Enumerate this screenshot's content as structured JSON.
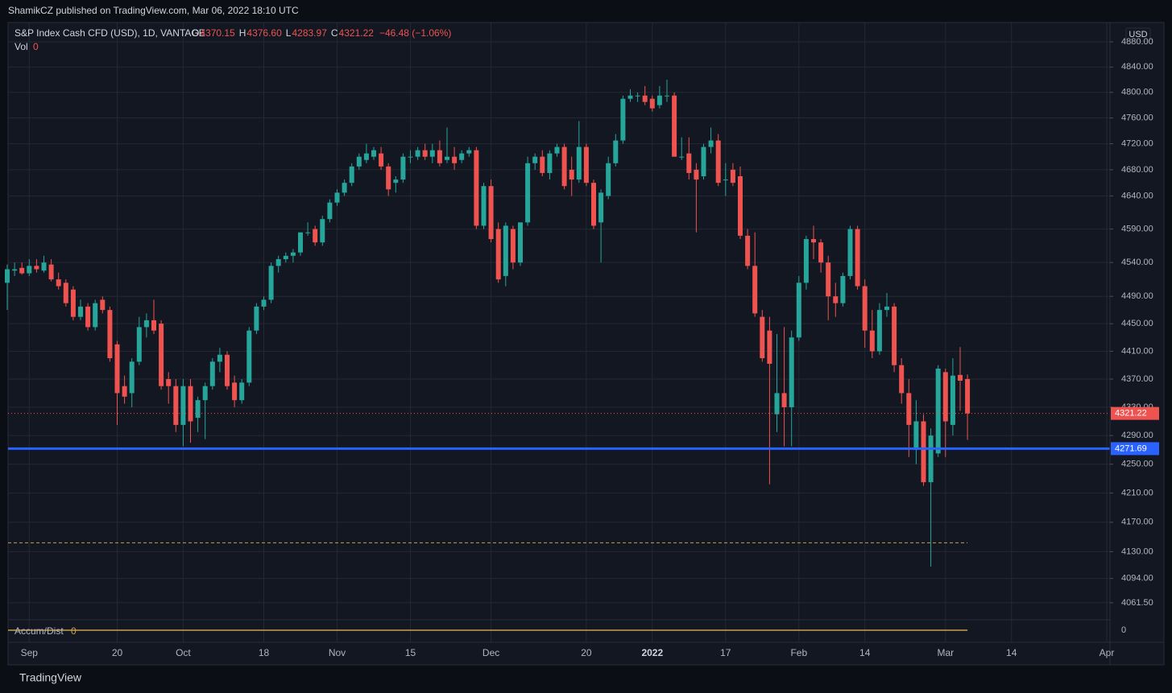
{
  "header": {
    "publisher": "ShamikCZ published on TradingView.com, Mar 06, 2022 18:10 UTC"
  },
  "legend": {
    "symbol": "S&P Index Cash CFD (USD), 1D, VANTAGE",
    "ohlc": [
      {
        "key": "O",
        "text": "4370.15"
      },
      {
        "key": "H",
        "text": "4376.60"
      },
      {
        "key": "L",
        "text": "4283.97"
      },
      {
        "key": "C",
        "text": "4321.22"
      }
    ],
    "change": "−46.48 (−1.06%)"
  },
  "indicators": {
    "volume": {
      "name": "Vol",
      "value": 0
    },
    "accum_dist": {
      "name": "Accum/Dist",
      "value": 0,
      "color": "#c8a04a"
    }
  },
  "footer": {
    "brand": "TradingView"
  },
  "chart_data": {
    "type": "candlestick",
    "currency": "USD",
    "log_scale": true,
    "grid": true,
    "up_color": "#26a69a",
    "down_color": "#ef5350",
    "ylim": [
      4039,
      4911
    ],
    "yticks": [
      {
        "value": 4880,
        "label": "4880.00"
      },
      {
        "value": 4840,
        "label": "4840.00"
      },
      {
        "value": 4800,
        "label": "4800.00"
      },
      {
        "value": 4760,
        "label": "4760.00"
      },
      {
        "value": 4720,
        "label": "4720.00"
      },
      {
        "value": 4680,
        "label": "4680.00"
      },
      {
        "value": 4640,
        "label": "4640.00"
      },
      {
        "value": 4590,
        "label": "4590.00"
      },
      {
        "value": 4540,
        "label": "4540.00"
      },
      {
        "value": 4490,
        "label": "4490.00"
      },
      {
        "value": 4450,
        "label": "4450.00"
      },
      {
        "value": 4410,
        "label": "4410.00"
      },
      {
        "value": 4370,
        "label": "4370.00"
      },
      {
        "value": 4330,
        "label": "4330.00"
      },
      {
        "value": 4290,
        "label": "4290.00"
      },
      {
        "value": 4250,
        "label": "4250.00"
      },
      {
        "value": 4210,
        "label": "4210.00"
      },
      {
        "value": 4170,
        "label": "4170.00"
      },
      {
        "value": 4130,
        "label": "4130.00"
      },
      {
        "value": 4094,
        "label": "4094.00"
      },
      {
        "value": 4061.5,
        "label": "4061.50"
      }
    ],
    "hlines": [
      {
        "value": 4271.69,
        "color": "#2962ff",
        "labeled": true
      },
      {
        "value": 4142,
        "color": "#c8a04a",
        "dashed": true
      }
    ],
    "categories": [
      null,
      null,
      null,
      "Sep",
      null,
      null,
      null,
      null,
      null,
      null,
      null,
      null,
      null,
      null,
      null,
      "20",
      null,
      null,
      null,
      null,
      null,
      null,
      null,
      null,
      "Oct",
      null,
      null,
      null,
      null,
      null,
      null,
      null,
      null,
      null,
      null,
      "18",
      null,
      null,
      null,
      null,
      null,
      null,
      null,
      null,
      null,
      "Nov",
      null,
      null,
      null,
      null,
      null,
      null,
      null,
      null,
      null,
      "15",
      null,
      null,
      null,
      null,
      null,
      null,
      null,
      null,
      null,
      null,
      "Dec",
      null,
      null,
      null,
      null,
      null,
      null,
      null,
      null,
      null,
      null,
      null,
      null,
      "20",
      null,
      null,
      null,
      null,
      null,
      null,
      null,
      null,
      "2022",
      null,
      null,
      null,
      null,
      null,
      null,
      null,
      null,
      null,
      "17",
      null,
      null,
      null,
      null,
      null,
      null,
      null,
      null,
      null,
      "Feb",
      null,
      null,
      null,
      null,
      null,
      null,
      null,
      null,
      "14",
      null,
      null,
      null,
      null,
      null,
      null,
      null,
      null,
      null,
      null,
      "Mar",
      null,
      null,
      null,
      null,
      null,
      null,
      null,
      null,
      "14",
      null,
      null,
      null,
      null,
      null,
      null,
      null,
      null,
      null,
      null,
      null,
      null,
      "Apr"
    ],
    "open": [
      4510,
      4528,
      4532,
      4524,
      4535,
      4528,
      4537,
      4515,
      4510,
      4500,
      4460,
      4475,
      4445,
      4485,
      4470,
      4420,
      4360,
      4350,
      4395,
      4445,
      4455,
      4450,
      4370,
      4360,
      4305,
      4360,
      4315,
      4340,
      4360,
      4395,
      4405,
      4365,
      4340,
      4365,
      4440,
      4475,
      4485,
      4535,
      4545,
      4550,
      4555,
      4585,
      4590,
      4570,
      4605,
      4630,
      4645,
      4660,
      4685,
      4695,
      4700,
      4705,
      4685,
      4660,
      4665,
      4700,
      4700,
      4710,
      4700,
      4710,
      4695,
      4700,
      4695,
      4705,
      4710,
      4595,
      4655,
      4590,
      4520,
      4590,
      4540,
      4600,
      4690,
      4700,
      4675,
      4705,
      4715,
      4680,
      4665,
      4715,
      4660,
      4600,
      4640,
      4690,
      4725,
      4790,
      4795,
      4795,
      4790,
      4780,
      4795,
      4795,
      4700,
      4705,
      4680,
      4670,
      4715,
      4725,
      4665,
      4680,
      4670,
      4580,
      4535,
      4460,
      4440,
      4320,
      4350,
      4330,
      4430,
      4510,
      4575,
      4570,
      4540,
      4490,
      4480,
      4520,
      4590,
      4505,
      4440,
      4410,
      4470,
      4475,
      4390,
      4350,
      4270,
      4310,
      4225,
      4265,
      4380,
      4305,
      4376,
      4370.15,
      null,
      null,
      null,
      null,
      null,
      null,
      null,
      null,
      null,
      null,
      null,
      null,
      null,
      null,
      null,
      null,
      null,
      null,
      null
    ],
    "high": [
      4537,
      4540,
      4540,
      4545,
      4545,
      4550,
      4545,
      4525,
      4515,
      4505,
      4485,
      4480,
      4485,
      4490,
      4475,
      4425,
      4375,
      4400,
      4460,
      4465,
      4485,
      4455,
      4380,
      4370,
      4370,
      4370,
      4345,
      4365,
      4400,
      4415,
      4410,
      4375,
      4370,
      4445,
      4480,
      4490,
      4540,
      4550,
      4555,
      4560,
      4585,
      4600,
      4595,
      4610,
      4635,
      4650,
      4665,
      4690,
      4705,
      4720,
      4715,
      4715,
      4690,
      4670,
      4705,
      4710,
      4715,
      4720,
      4720,
      4725,
      4745,
      4715,
      4710,
      4715,
      4715,
      4660,
      4665,
      4600,
      4600,
      4595,
      4600,
      4700,
      4705,
      4710,
      4710,
      4720,
      4720,
      4700,
      4755,
      4720,
      4665,
      4650,
      4700,
      4735,
      4795,
      4805,
      4800,
      4810,
      4795,
      4810,
      4820,
      4800,
      4730,
      4730,
      4690,
      4720,
      4745,
      4735,
      4690,
      4690,
      4685,
      4590,
      4585,
      4470,
      4460,
      4435,
      4445,
      4440,
      4520,
      4580,
      4595,
      4575,
      4550,
      4510,
      4525,
      4595,
      4595,
      4515,
      4470,
      4480,
      4495,
      4480,
      4400,
      4370,
      4340,
      4320,
      4300,
      4390,
      4385,
      4400,
      4416,
      4376.6,
      null,
      null,
      null,
      null,
      null,
      null,
      null,
      null,
      null,
      null,
      null,
      null,
      null,
      null,
      null,
      null,
      null,
      null,
      null
    ],
    "low": [
      4470,
      4520,
      4522,
      4520,
      4525,
      4525,
      4512,
      4500,
      4475,
      4455,
      4455,
      4440,
      4440,
      4465,
      4395,
      4305,
      4335,
      4330,
      4390,
      4430,
      4435,
      4355,
      4335,
      4295,
      4275,
      4280,
      4295,
      4285,
      4355,
      4380,
      4355,
      4330,
      4335,
      4360,
      4435,
      4470,
      4480,
      4525,
      4540,
      4540,
      4550,
      4580,
      4565,
      4565,
      4600,
      4625,
      4640,
      4655,
      4680,
      4690,
      4695,
      4680,
      4640,
      4645,
      4660,
      4690,
      4695,
      4695,
      4690,
      4685,
      4690,
      4680,
      4690,
      4700,
      4590,
      4590,
      4570,
      4510,
      4505,
      4530,
      4535,
      4595,
      4680,
      4670,
      4665,
      4700,
      4650,
      4640,
      4660,
      4655,
      4590,
      4540,
      4635,
      4685,
      4720,
      4785,
      4785,
      4780,
      4770,
      4775,
      4785,
      4700,
      4695,
      4665,
      4585,
      4665,
      4705,
      4655,
      4640,
      4655,
      4575,
      4530,
      4460,
      4395,
      4222,
      4295,
      4275,
      4275,
      4425,
      4500,
      4545,
      4525,
      4455,
      4460,
      4475,
      4515,
      4500,
      4415,
      4400,
      4405,
      4460,
      4380,
      4335,
      4260,
      4250,
      4220,
      4110,
      4260,
      4260,
      4290,
      4325,
      4283.97,
      null,
      null,
      null,
      null,
      null,
      null,
      null,
      null,
      null,
      null,
      null,
      null,
      null,
      null,
      null,
      null,
      null,
      null,
      null
    ],
    "close": [
      4530,
      4530,
      4524,
      4535,
      4530,
      4540,
      4515,
      4505,
      4480,
      4460,
      4475,
      4445,
      4480,
      4470,
      4400,
      4350,
      4345,
      4395,
      4445,
      4455,
      4440,
      4360,
      4360,
      4305,
      4360,
      4310,
      4340,
      4360,
      4395,
      4405,
      4360,
      4340,
      4365,
      4440,
      4475,
      4485,
      4535,
      4545,
      4550,
      4555,
      4585,
      4585,
      4570,
      4605,
      4630,
      4645,
      4660,
      4685,
      4700,
      4705,
      4710,
      4685,
      4650,
      4665,
      4700,
      4700,
      4710,
      4700,
      4710,
      4690,
      4700,
      4690,
      4705,
      4710,
      4595,
      4655,
      4575,
      4515,
      4595,
      4540,
      4600,
      4690,
      4700,
      4675,
      4705,
      4715,
      4655,
      4665,
      4715,
      4660,
      4595,
      4645,
      4690,
      4725,
      4790,
      4795,
      4795,
      4785,
      4775,
      4795,
      4795,
      4700,
      4700,
      4675,
      4665,
      4715,
      4725,
      4660,
      4665,
      4660,
      4580,
      4535,
      4465,
      4400,
      4392,
      4350,
      4330,
      4430,
      4510,
      4575,
      4570,
      4540,
      4490,
      4480,
      4520,
      4590,
      4505,
      4440,
      4410,
      4470,
      4475,
      4390,
      4350,
      4305,
      4310,
      4225,
      4290,
      4385,
      4310,
      4375,
      4367.7,
      4321.22,
      null,
      null,
      null,
      null,
      null,
      null,
      null,
      null,
      null,
      null,
      null,
      null,
      null,
      null,
      null,
      null,
      null,
      null,
      null
    ]
  }
}
